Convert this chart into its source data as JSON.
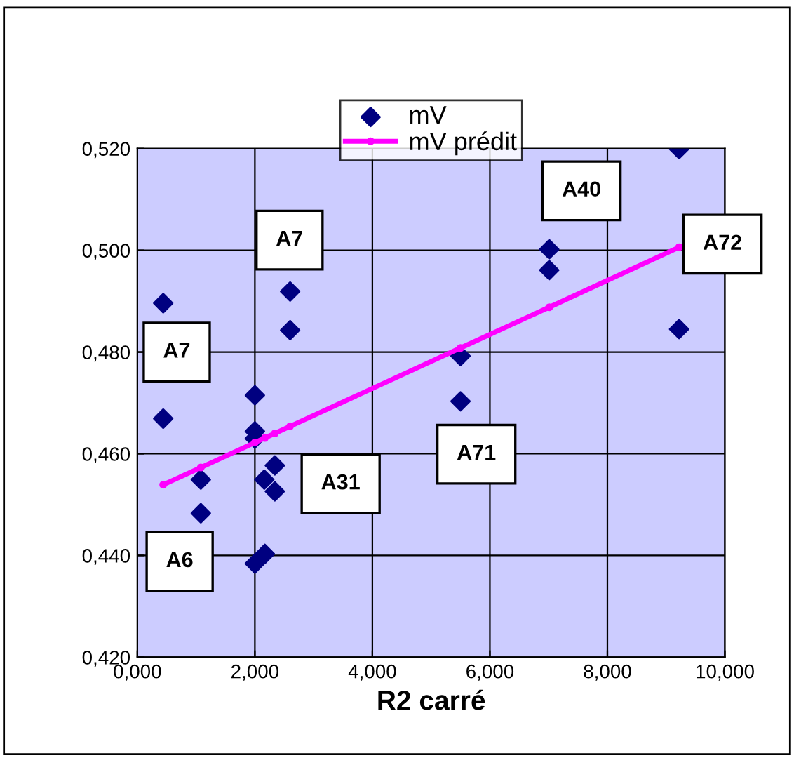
{
  "chart_data": {
    "type": "scatter",
    "xlabel": "R2 carré",
    "xlim": [
      0,
      10
    ],
    "xticks": [
      {
        "value": 0,
        "label": "0,000"
      },
      {
        "value": 2,
        "label": "2,000"
      },
      {
        "value": 4,
        "label": "4,000"
      },
      {
        "value": 6,
        "label": "6,000"
      },
      {
        "value": 8,
        "label": "8,000"
      },
      {
        "value": 10,
        "label": "10,000"
      }
    ],
    "ylim": [
      0.42,
      0.52
    ],
    "yticks": [
      {
        "value": 0.42,
        "label": "0,420"
      },
      {
        "value": 0.44,
        "label": "0,440"
      },
      {
        "value": 0.46,
        "label": "0,460"
      },
      {
        "value": 0.48,
        "label": "0,480"
      },
      {
        "value": 0.5,
        "label": "0,500"
      },
      {
        "value": 0.52,
        "label": "0,520"
      }
    ],
    "grid": true,
    "legend": "top",
    "series": [
      {
        "name": "mV",
        "marker": "diamond",
        "color": "#000080",
        "x": [
          0.44,
          0.44,
          1.08,
          1.08,
          2.0,
          2.0,
          2.0,
          2.6,
          2.6,
          2.34,
          2.16,
          2.34,
          2.0,
          2.17,
          5.5,
          5.5,
          7.01,
          7.01,
          9.22,
          9.22
        ],
        "values": [
          0.4896,
          0.4669,
          0.4549,
          0.4483,
          0.4715,
          0.4644,
          0.463,
          0.4919,
          0.4843,
          0.4577,
          0.4549,
          0.4526,
          0.4384,
          0.4403,
          0.4792,
          0.4703,
          0.5002,
          0.4961,
          0.5199,
          0.4845
        ]
      },
      {
        "name": "mV prédit",
        "type": "line",
        "marker": "circle",
        "line_style": "solid",
        "color": "#ff00ff",
        "x": [
          0.44,
          1.08,
          2.0,
          2.17,
          2.34,
          2.6,
          5.5,
          7.01,
          9.22
        ],
        "values": [
          0.4539,
          0.4573,
          0.4622,
          0.4631,
          0.464,
          0.4654,
          0.4808,
          0.4888,
          0.5006
        ]
      }
    ],
    "annotations": [
      "A7",
      "A7",
      "A6",
      "A31",
      "A71",
      "A40",
      "A72"
    ]
  }
}
